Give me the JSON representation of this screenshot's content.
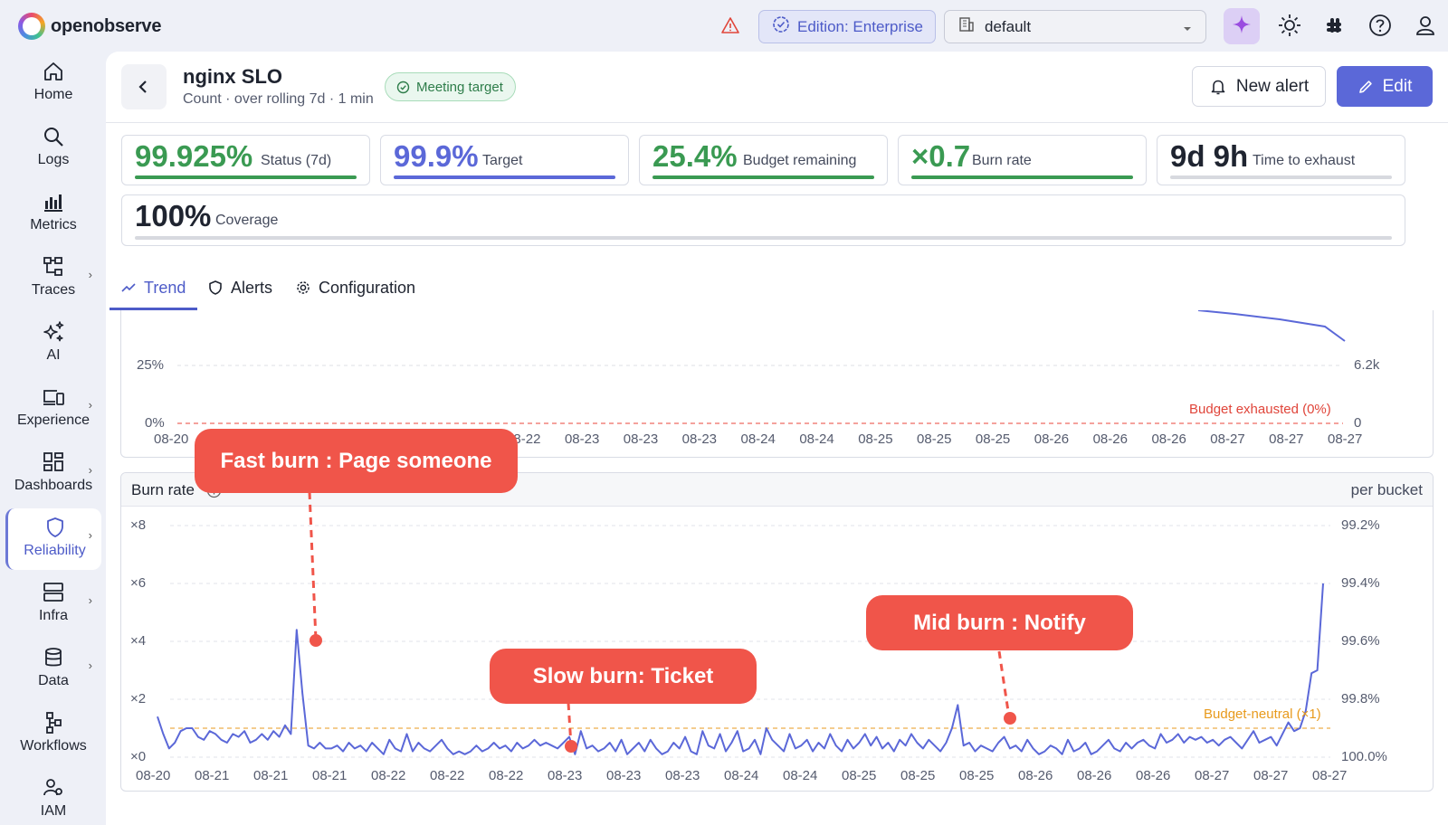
{
  "app": {
    "logo_text": "openobserve"
  },
  "header": {
    "edition_label": "Edition: Enterprise",
    "org_name": "default",
    "icons": [
      "warning-icon",
      "ai-sparkle-icon",
      "theme-icon",
      "slack-icon",
      "help-icon",
      "user-icon"
    ]
  },
  "sidebar": {
    "items": [
      {
        "label": "Home",
        "icon": "home-icon",
        "has_caret": false,
        "active": false
      },
      {
        "label": "Logs",
        "icon": "search-icon",
        "has_caret": false,
        "active": false
      },
      {
        "label": "Metrics",
        "icon": "bar-chart-icon",
        "has_caret": false,
        "active": false
      },
      {
        "label": "Traces",
        "icon": "traces-icon",
        "has_caret": true,
        "active": false
      },
      {
        "label": "AI",
        "icon": "sparkle-icon",
        "has_caret": false,
        "active": false
      },
      {
        "label": "Experience",
        "icon": "devices-icon",
        "has_caret": true,
        "active": false
      },
      {
        "label": "Dashboards",
        "icon": "dashboard-icon",
        "has_caret": true,
        "active": false
      },
      {
        "label": "Reliability",
        "icon": "shield-icon",
        "has_caret": true,
        "active": true
      },
      {
        "label": "Infra",
        "icon": "server-icon",
        "has_caret": true,
        "active": false
      },
      {
        "label": "Data",
        "icon": "database-icon",
        "has_caret": true,
        "active": false
      },
      {
        "label": "Workflows",
        "icon": "workflow-icon",
        "has_caret": false,
        "active": false
      },
      {
        "label": "IAM",
        "icon": "users-icon",
        "has_caret": false,
        "active": false
      }
    ]
  },
  "slo": {
    "title": "nginx SLO",
    "subtitle": "Count · over rolling 7d · 1 min",
    "status_badge": "Meeting target",
    "new_alert_label": "New alert",
    "edit_label": "Edit"
  },
  "metrics": [
    {
      "value": "99.925%",
      "label": "Status (7d)",
      "color": "#3a9a52",
      "fill": 1.0
    },
    {
      "value": "99.9%",
      "label": "Target",
      "color": "#5b68d8",
      "fill": 1.0
    },
    {
      "value": "25.4%",
      "label": "Budget remaining",
      "color": "#3a9a52",
      "fill": 1.0
    },
    {
      "value": "×0.7",
      "label": "Burn rate",
      "color": "#3a9a52",
      "fill": 1.0
    },
    {
      "value": "9d 9h",
      "label": "Time to exhaust",
      "color": "#1f2430",
      "fill": 1.0
    },
    {
      "value": "100%",
      "label": "Coverage",
      "color": "#1f2430",
      "fill": 1.0
    }
  ],
  "tabs": [
    {
      "label": "Trend",
      "icon": "trend-icon",
      "active": true
    },
    {
      "label": "Alerts",
      "icon": "shield-icon",
      "active": false
    },
    {
      "label": "Configuration",
      "icon": "gear-icon",
      "active": false
    }
  ],
  "budget_chart_labels": {
    "y_left_ticks": [
      "25%",
      "0%"
    ],
    "y_right_ticks": [
      "6.2k",
      "0"
    ],
    "exhausted_label": "Budget exhausted (0%)",
    "x_ticks": [
      "08-20",
      "08-21",
      "08-21",
      "08-21",
      "08-22",
      "08-22",
      "08-22",
      "08-23",
      "08-23",
      "08-23",
      "08-24",
      "08-24",
      "08-25",
      "08-25",
      "08-25",
      "08-26",
      "08-26",
      "08-26",
      "08-27",
      "08-27",
      "08-27"
    ]
  },
  "burn_panel": {
    "title": "Burn rate",
    "unit_label": "per bucket"
  },
  "chart_data": {
    "type": "line",
    "title": "Burn rate",
    "y_left_ticks": [
      "×8",
      "×6",
      "×4",
      "×2",
      "×0"
    ],
    "y_right_ticks": [
      "99.2%",
      "99.4%",
      "99.6%",
      "99.8%",
      "100.0%"
    ],
    "ylim": [
      0,
      8
    ],
    "x_ticks": [
      "08-20",
      "08-21",
      "08-21",
      "08-21",
      "08-22",
      "08-22",
      "08-22",
      "08-23",
      "08-23",
      "08-23",
      "08-24",
      "08-24",
      "08-25",
      "08-25",
      "08-25",
      "08-26",
      "08-26",
      "08-26",
      "08-27",
      "08-27",
      "08-27"
    ],
    "reference_line": {
      "label": "Budget-neutral (×1)",
      "value": 1
    },
    "series": [
      {
        "values": [
          1.4,
          0.8,
          0.3,
          0.5,
          0.9,
          1.0,
          1.0,
          0.7,
          0.6,
          0.9,
          0.8,
          0.6,
          0.5,
          0.8,
          0.7,
          0.9,
          0.5,
          0.6,
          0.8,
          0.6,
          0.9,
          0.7,
          1.1,
          0.8,
          4.4,
          2.2,
          0.4,
          0.3,
          0.5,
          0.3,
          0.3,
          0.4,
          0.2,
          0.5,
          0.3,
          0.4,
          0.2,
          0.5,
          0.3,
          0.1,
          0.6,
          0.3,
          0.2,
          0.8,
          0.2,
          0.5,
          0.3,
          0.2,
          0.4,
          0.6,
          0.3,
          0.1,
          0.2,
          0.1,
          0.2,
          0.4,
          0.2,
          0.3,
          0.5,
          0.3,
          0.4,
          0.2,
          0.5,
          0.3,
          0.4,
          0.6,
          0.4,
          0.5,
          0.4,
          0.3,
          0.5,
          0.7,
          0.1,
          0.9,
          0.3,
          0.4,
          0.2,
          0.3,
          0.5,
          0.2,
          0.6,
          0.1,
          0.3,
          0.5,
          0.2,
          0.6,
          0.3,
          0.1,
          0.2,
          0.5,
          0.3,
          0.7,
          0.2,
          0.1,
          0.9,
          0.4,
          0.3,
          0.8,
          0.2,
          0.5,
          0.9,
          0.2,
          0.3,
          0.6,
          0.1,
          1.0,
          0.6,
          0.4,
          0.2,
          0.8,
          0.3,
          0.4,
          0.6,
          0.2,
          0.5,
          0.3,
          0.8,
          0.4,
          0.2,
          0.6,
          0.3,
          0.5,
          0.8,
          0.4,
          0.7,
          0.3,
          0.5,
          0.2,
          0.6,
          0.4,
          0.8,
          0.5,
          0.3,
          0.6,
          0.4,
          0.2,
          0.5,
          1.0,
          1.8,
          0.4,
          0.5,
          0.2,
          0.4,
          0.3,
          0.2,
          0.5,
          0.7,
          0.3,
          0.4,
          0.2,
          0.6,
          0.3,
          0.1,
          0.2,
          0.4,
          0.3,
          0.1,
          0.6,
          0.2,
          0.3,
          0.5,
          0.1,
          0.2,
          0.4,
          0.6,
          0.3,
          0.2,
          0.5,
          0.3,
          0.5,
          0.6,
          0.4,
          0.3,
          0.8,
          0.5,
          0.6,
          0.8,
          0.5,
          0.7,
          0.6,
          0.7,
          0.5,
          0.6,
          0.4,
          0.6,
          0.7,
          0.5,
          0.3,
          0.6,
          0.9,
          0.5,
          0.6,
          0.7,
          0.4,
          0.8,
          1.2,
          0.9,
          1.0,
          1.6,
          2.9,
          3.0,
          6.0
        ]
      }
    ]
  },
  "callouts": [
    {
      "text": "Fast burn : Page someone"
    },
    {
      "text": "Slow burn: Ticket"
    },
    {
      "text": "Mid burn : Notify"
    }
  ]
}
